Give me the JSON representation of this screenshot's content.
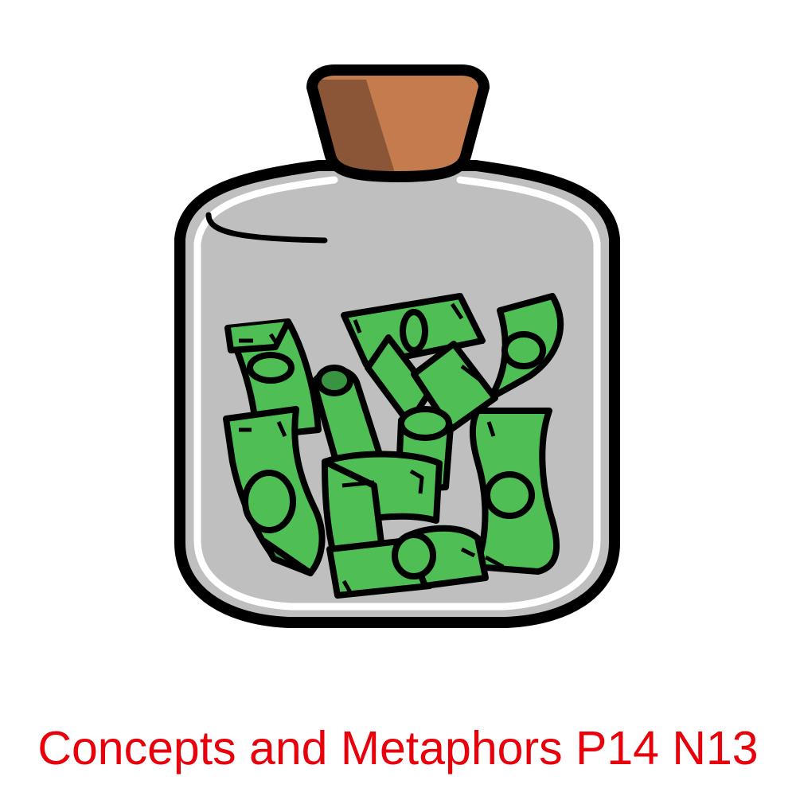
{
  "caption": {
    "text": "Concepts and Metaphors P14 N13",
    "color": "#e8000b"
  },
  "illustration": {
    "icon": "money-jar-icon",
    "colors": {
      "outline": "#000000",
      "glass": "#bfbfbf",
      "glass_highlight": "#ffffff",
      "cork": "#c47c4e",
      "cork_shadow": "#8a5637",
      "bill": "#4fbf55",
      "bill_shadow": "#389440"
    }
  }
}
